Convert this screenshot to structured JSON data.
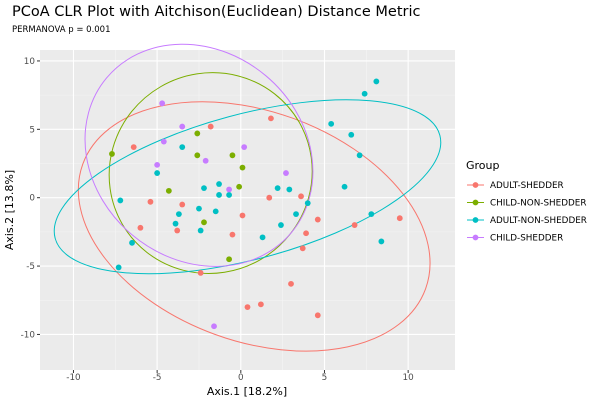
{
  "chart_data": {
    "type": "scatter",
    "title": "PCoA CLR Plot with Aitchison(Euclidean) Distance Metric",
    "subtitle": "PERMANOVA p = 0.001",
    "xlabel": "Axis.1   [18.2%]",
    "ylabel": "Axis.2   [13.8%]",
    "xlim": [
      -12,
      12.8
    ],
    "ylim": [
      -12.6,
      10.8
    ],
    "xticks": [
      -10,
      -5,
      0,
      5,
      10
    ],
    "yticks": [
      -10,
      -5,
      0,
      5,
      10
    ],
    "grid": true,
    "legend": {
      "title": "Group",
      "placement": "right"
    },
    "series": [
      {
        "name": "ADULT-SHEDDER",
        "color": "#F8766D",
        "points": [
          [
            -1.8,
            5.2
          ],
          [
            -6.4,
            3.7
          ],
          [
            -5.4,
            -0.3
          ],
          [
            -3.5,
            -0.5
          ],
          [
            1.8,
            5.8
          ],
          [
            1.7,
            0.0
          ],
          [
            3.6,
            0.1
          ],
          [
            0.1,
            -1.3
          ],
          [
            -6.0,
            -2.2
          ],
          [
            -3.8,
            -2.4
          ],
          [
            -0.5,
            -2.7
          ],
          [
            -2.4,
            -5.5
          ],
          [
            0.4,
            -8.0
          ],
          [
            4.6,
            -1.6
          ],
          [
            3.9,
            -2.6
          ],
          [
            3.7,
            -3.7
          ],
          [
            9.5,
            -1.5
          ],
          [
            6.8,
            -2.0
          ],
          [
            3.0,
            -6.3
          ],
          [
            1.2,
            -7.8
          ],
          [
            4.6,
            -8.6
          ]
        ],
        "ellipse": {
          "center": [
            0.8,
            -2.1
          ],
          "rx": 10.9,
          "ry": 8.4,
          "angle": 20
        }
      },
      {
        "name": "CHILD-NON-SHEDDER",
        "color": "#7CAE00",
        "points": [
          [
            -2.6,
            4.7
          ],
          [
            -7.7,
            3.2
          ],
          [
            -2.6,
            3.1
          ],
          [
            -0.5,
            3.1
          ],
          [
            0.1,
            2.2
          ],
          [
            -4.3,
            0.5
          ],
          [
            -0.1,
            0.8
          ],
          [
            -2.2,
            -1.8
          ],
          [
            -0.7,
            -4.5
          ]
        ],
        "ellipse": {
          "center": [
            -1.8,
            1.8
          ],
          "rx": 6.1,
          "ry": 7.3,
          "angle": -30
        }
      },
      {
        "name": "ADULT-NON-SHEDDER",
        "color": "#00BFC4",
        "points": [
          [
            -3.5,
            3.7
          ],
          [
            -5.0,
            1.8
          ],
          [
            -2.2,
            0.7
          ],
          [
            -1.3,
            1.0
          ],
          [
            -1.3,
            0.2
          ],
          [
            -0.7,
            0.2
          ],
          [
            -7.2,
            -0.2
          ],
          [
            -2.5,
            -0.8
          ],
          [
            8.1,
            8.5
          ],
          [
            7.4,
            7.6
          ],
          [
            5.4,
            5.4
          ],
          [
            6.6,
            4.6
          ],
          [
            7.1,
            3.1
          ],
          [
            2.2,
            0.7
          ],
          [
            2.9,
            0.6
          ],
          [
            6.2,
            0.8
          ],
          [
            4.0,
            -0.4
          ],
          [
            -1.5,
            -1.0
          ],
          [
            -3.7,
            -1.2
          ],
          [
            -3.9,
            -1.9
          ],
          [
            -2.4,
            -2.4
          ],
          [
            -6.5,
            -3.3
          ],
          [
            -7.3,
            -5.1
          ],
          [
            3.3,
            -1.2
          ],
          [
            2.4,
            -2.0
          ],
          [
            1.3,
            -2.9
          ],
          [
            7.8,
            -1.2
          ],
          [
            8.4,
            -3.2
          ]
        ],
        "ellipse": {
          "center": [
            0.4,
            0.8
          ],
          "rx": 11.9,
          "ry": 5.3,
          "angle": -15
        }
      },
      {
        "name": "CHILD-SHEDDER",
        "color": "#C77CFF",
        "points": [
          [
            -4.7,
            6.9
          ],
          [
            -3.5,
            5.2
          ],
          [
            -4.6,
            4.1
          ],
          [
            -2.1,
            2.7
          ],
          [
            0.2,
            3.7
          ],
          [
            -5.0,
            2.4
          ],
          [
            -0.7,
            0.6
          ],
          [
            2.7,
            1.8
          ],
          [
            -1.6,
            -9.4
          ]
        ],
        "ellipse": {
          "center": [
            -2.5,
            3.1
          ],
          "rx": 7.2,
          "ry": 7.6,
          "angle": 40
        }
      }
    ]
  }
}
